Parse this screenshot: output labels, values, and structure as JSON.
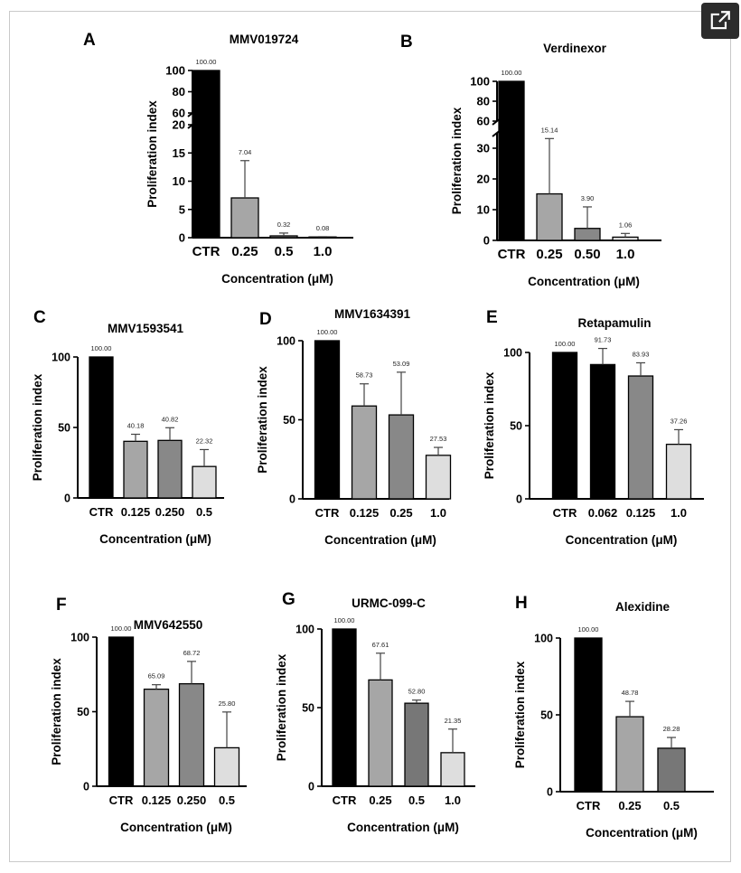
{
  "toolbar": {
    "open_icon": "open-in-new-window-icon"
  },
  "chart_data": [
    {
      "type": "bar",
      "panel": "A",
      "title": "MMV019724",
      "xlabel": "Concentration (μM)",
      "ylabel": "Proliferation index",
      "categories": [
        "CTR",
        "0.25",
        "0.5",
        "1.0"
      ],
      "values": [
        100,
        7.04,
        0.32,
        0.08
      ],
      "data_labels": [
        "100.00",
        "7.04",
        "0.32",
        "0.08"
      ],
      "errors": [
        0,
        6.6,
        0.5,
        0.1
      ],
      "colors": [
        "#000000",
        "#a6a6a6",
        "#888888",
        "#dedede"
      ],
      "broken_axis": true,
      "lower_ticks": [
        0,
        5,
        10,
        15,
        20
      ],
      "upper_ticks": [
        60,
        80,
        100
      ]
    },
    {
      "type": "bar",
      "panel": "B",
      "title": "Verdinexor",
      "xlabel": "Concentration (μM)",
      "ylabel": "Proliferation index",
      "categories": [
        "CTR",
        "0.25",
        "0.50",
        "1.0"
      ],
      "values": [
        100,
        15.14,
        3.9,
        1.06
      ],
      "data_labels": [
        "100.00",
        "15.14",
        "3.90",
        "1.06"
      ],
      "errors": [
        0,
        18,
        7,
        1.2
      ],
      "colors": [
        "#000000",
        "#a6a6a6",
        "#888888",
        "#dedede"
      ],
      "broken_axis": true,
      "lower_ticks": [
        0,
        10,
        20,
        30
      ],
      "upper_ticks": [
        60,
        80,
        100
      ]
    },
    {
      "type": "bar",
      "panel": "C",
      "title": "MMV1593541",
      "xlabel": "Concentration (μM)",
      "ylabel": "Proliferation index",
      "categories": [
        "CTR",
        "0.125",
        "0.250",
        "0.5"
      ],
      "values": [
        100,
        40.18,
        40.82,
        22.32
      ],
      "data_labels": [
        "100.00",
        "40.18",
        "40.82",
        "22.32"
      ],
      "errors": [
        0,
        5,
        9,
        12
      ],
      "colors": [
        "#000000",
        "#a6a6a6",
        "#888888",
        "#dedede"
      ],
      "ylim": [
        0,
        100
      ],
      "yticks": [
        0,
        50,
        100
      ]
    },
    {
      "type": "bar",
      "panel": "D",
      "title": "MMV1634391",
      "xlabel": "Concentration (μM)",
      "ylabel": "Proliferation index",
      "categories": [
        "CTR",
        "0.125",
        "0.25",
        "1.0"
      ],
      "values": [
        100,
        58.73,
        53.09,
        27.53
      ],
      "data_labels": [
        "100.00",
        "58.73",
        "53.09",
        "27.53"
      ],
      "errors": [
        0,
        14,
        27,
        5
      ],
      "colors": [
        "#000000",
        "#a6a6a6",
        "#888888",
        "#dedede"
      ],
      "ylim": [
        0,
        100
      ],
      "yticks": [
        0,
        50,
        100
      ]
    },
    {
      "type": "bar",
      "panel": "E",
      "title": "Retapamulin",
      "xlabel": "Concentration (μM)",
      "ylabel": "Proliferation index",
      "categories": [
        "CTR",
        "0.062",
        "0.125",
        "1.0"
      ],
      "values": [
        100,
        91.73,
        83.93,
        37.26
      ],
      "data_labels": [
        "100.00",
        "91.73",
        "83.93",
        "37.26"
      ],
      "errors": [
        0,
        11,
        9,
        10
      ],
      "colors": [
        "#000000",
        "#000000",
        "#888888",
        "#dedede"
      ],
      "ylim": [
        0,
        100
      ],
      "yticks": [
        0,
        50,
        100
      ]
    },
    {
      "type": "bar",
      "panel": "F",
      "title": "MMV642550",
      "xlabel": "Concentration (μM)",
      "ylabel": "Proliferation index",
      "categories": [
        "CTR",
        "0.125",
        "0.250",
        "0.5"
      ],
      "values": [
        100,
        65.09,
        68.72,
        25.8
      ],
      "data_labels": [
        "100.00",
        "65.09",
        "68.72",
        "25.80"
      ],
      "errors": [
        0,
        3,
        15,
        24
      ],
      "colors": [
        "#000000",
        "#a6a6a6",
        "#888888",
        "#dedede"
      ],
      "ylim": [
        0,
        100
      ],
      "yticks": [
        0,
        50,
        100
      ]
    },
    {
      "type": "bar",
      "panel": "G",
      "title": "URMC-099-C",
      "xlabel": "Concentration (μM)",
      "ylabel": "Proliferation index",
      "categories": [
        "CTR",
        "0.25",
        "0.5",
        "1.0"
      ],
      "values": [
        100,
        67.61,
        52.8,
        21.35
      ],
      "data_labels": [
        "100.00",
        "67.61",
        "52.80",
        "21.35"
      ],
      "errors": [
        0,
        17,
        2,
        15
      ],
      "colors": [
        "#000000",
        "#a6a6a6",
        "#777777",
        "#dedede"
      ],
      "ylim": [
        0,
        100
      ],
      "yticks": [
        0,
        50,
        100
      ]
    },
    {
      "type": "bar",
      "panel": "H",
      "title": "Alexidine",
      "xlabel": "Concentration (μM)",
      "ylabel": "Proliferation index",
      "categories": [
        "CTR",
        "0.25",
        "0.5"
      ],
      "values": [
        100,
        48.78,
        28.28
      ],
      "data_labels": [
        "100.00",
        "48.78",
        "28.28"
      ],
      "errors": [
        0,
        10,
        7
      ],
      "colors": [
        "#000000",
        "#a6a6a6",
        "#777777"
      ],
      "ylim": [
        0,
        100
      ],
      "yticks": [
        0,
        50,
        100
      ]
    }
  ]
}
